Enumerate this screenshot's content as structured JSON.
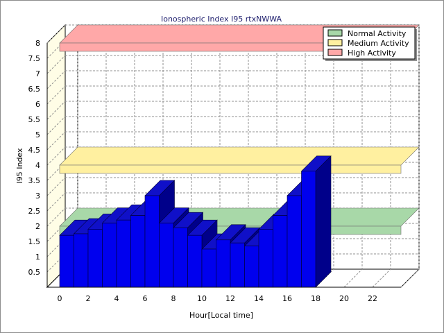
{
  "chart_data": {
    "type": "bar",
    "title": "Ionospheric Index I95 rtxNWWA",
    "xlabel": "Hour[Local time]",
    "ylabel": "I95 Index",
    "xlim": [
      0,
      24
    ],
    "ylim": [
      0,
      8
    ],
    "x_ticks": [
      "0",
      "2",
      "4",
      "6",
      "8",
      "10",
      "12",
      "14",
      "16",
      "18",
      "20",
      "22"
    ],
    "y_ticks": [
      "0.5",
      "1",
      "1.5",
      "2",
      "2.5",
      "3",
      "3.5",
      "4",
      "4.5",
      "5",
      "5.5",
      "6",
      "6.5",
      "7",
      "7.5",
      "8"
    ],
    "grid": true,
    "legend_position": "top-right",
    "x": [
      0,
      1,
      2,
      3,
      4,
      5,
      6,
      7,
      8,
      9,
      10,
      11,
      12,
      13,
      14,
      15,
      16,
      17
    ],
    "values": [
      1.7,
      1.75,
      1.9,
      2.1,
      2.2,
      2.35,
      3.0,
      2.1,
      1.95,
      1.7,
      1.25,
      1.55,
      1.45,
      1.35,
      1.9,
      2.35,
      3.0,
      3.8
    ],
    "bar_color": "#0000ee",
    "bands": [
      {
        "name": "Normal Activity",
        "value": 2.0,
        "color": "#a8d8a8"
      },
      {
        "name": "Medium Activity",
        "value": 4.0,
        "color": "#fff0a0"
      },
      {
        "name": "High Activity",
        "value": 8.0,
        "color": "#ffa8a8"
      }
    ]
  }
}
